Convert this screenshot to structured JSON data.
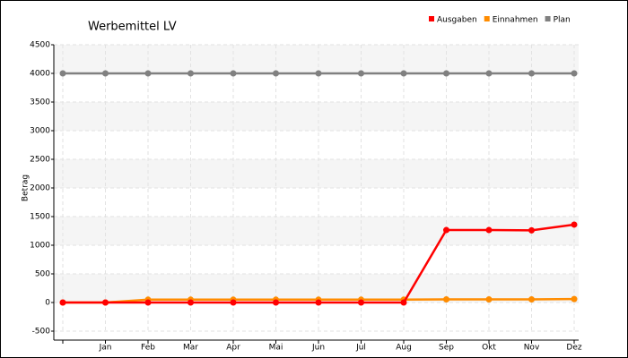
{
  "chart_data": {
    "type": "line",
    "title": "Werbemittel LV",
    "y_label": "Betrag",
    "categories": [
      null,
      "Jan",
      "Feb",
      "Mar",
      "Apr",
      "Mai",
      "Jun",
      "Jul",
      "Aug",
      "Sep",
      "Okt",
      "Nov",
      "Dez"
    ],
    "series": [
      {
        "name": "Ausgaben",
        "color": "#ff0000",
        "values": [
          0,
          0,
          0,
          0,
          0,
          0,
          0,
          0,
          0,
          1265,
          1265,
          1260,
          1360
        ]
      },
      {
        "name": "Einnahmen",
        "color": "#ff8c00",
        "values": [
          0,
          0,
          50,
          50,
          50,
          50,
          50,
          50,
          50,
          55,
          55,
          55,
          60
        ]
      },
      {
        "name": "Plan",
        "color": "#808080",
        "values": [
          4000,
          4000,
          4000,
          4000,
          4000,
          4000,
          4000,
          4000,
          4000,
          4000,
          4000,
          4000,
          4000
        ]
      }
    ],
    "ylim": [
      -500,
      4500
    ],
    "yticks": [
      -500,
      0,
      500,
      1000,
      1500,
      2000,
      2500,
      3000,
      3500,
      4000,
      4500
    ],
    "grid": true
  }
}
